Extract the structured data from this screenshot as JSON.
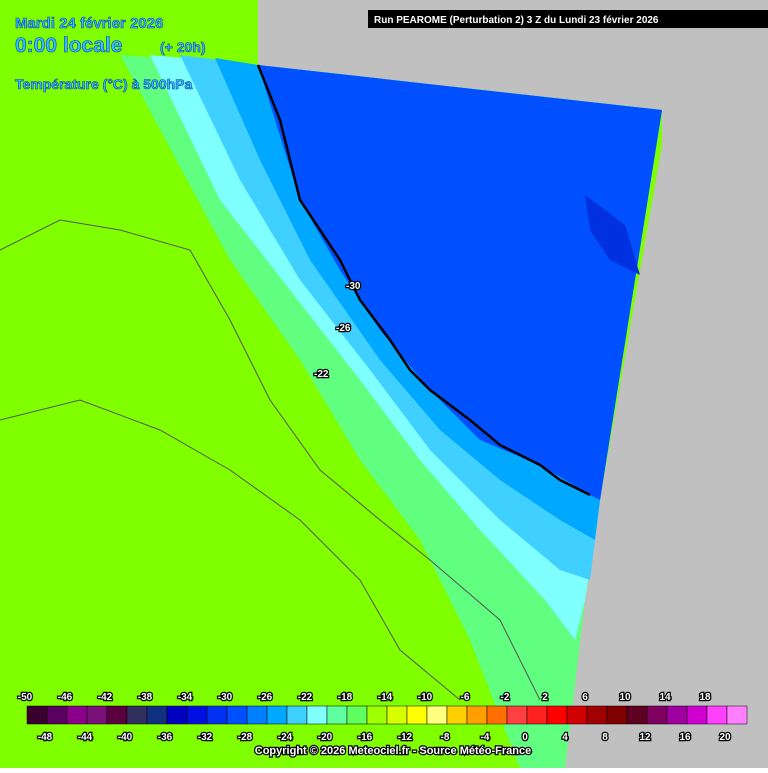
{
  "header": {
    "date": "Mardi 24 février 2026",
    "time": "0:00 locale",
    "lead": "(+ 20h)",
    "parameter": "Température (°C) à 500hPa",
    "run": "Run PEAROME (Perturbation 2) 3 Z du Lundi 23 février 2026"
  },
  "contour_labels": [
    -30,
    -26,
    -22
  ],
  "legend": {
    "labels": [
      -50,
      -48,
      -46,
      -44,
      -42,
      -40,
      -38,
      -36,
      -34,
      -32,
      -30,
      -28,
      -26,
      -24,
      -22,
      -20,
      -18,
      -16,
      -14,
      -12,
      -10,
      -8,
      -6,
      -4,
      -2,
      0,
      2,
      4,
      6,
      8,
      10,
      12,
      14,
      16,
      18,
      20
    ],
    "colors": [
      "#3a0030",
      "#5a0060",
      "#8a008a",
      "#7a107a",
      "#5a0040",
      "#303060",
      "#103080",
      "#0000c0",
      "#0010e0",
      "#0030f0",
      "#0050ff",
      "#0080ff",
      "#00a8ff",
      "#40d0ff",
      "#80ffff",
      "#60ffa0",
      "#60ff60",
      "#a0ff00",
      "#d8ff00",
      "#ffff00",
      "#ffff80",
      "#ffd000",
      "#ffa000",
      "#ff7000",
      "#ff4040",
      "#ff2020",
      "#ff0000",
      "#d00000",
      "#a00000",
      "#800000",
      "#600020",
      "#800060",
      "#a000a0",
      "#d000d0",
      "#ff40ff",
      "#ff80ff"
    ]
  },
  "footer": {
    "copyright": "Copyright © 2026 Meteociel.fr - Source Météo-France"
  }
}
